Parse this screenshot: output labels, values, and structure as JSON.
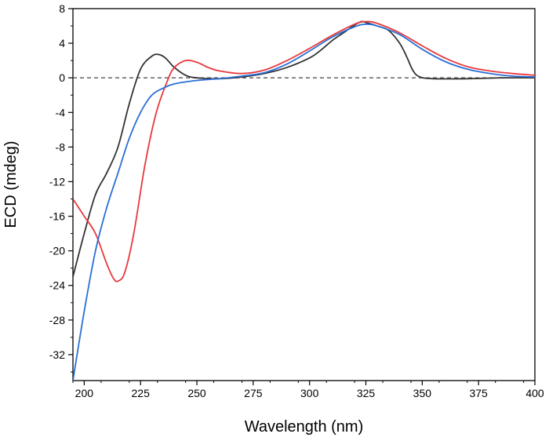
{
  "chart_data": {
    "type": "line",
    "xlabel": "Wavelength (nm)",
    "ylabel": "ECD (mdeg)",
    "xlim": [
      195,
      400
    ],
    "ylim": [
      -35,
      8
    ],
    "x_ticks": [
      200,
      225,
      250,
      275,
      300,
      325,
      350,
      375,
      400
    ],
    "y_ticks": [
      8,
      4,
      0,
      -4,
      -8,
      -12,
      -16,
      -20,
      -24,
      -28,
      -32
    ],
    "grid": false,
    "legend": "none",
    "zero_line": {
      "y": 0,
      "style": "dashed",
      "color": "#555555"
    },
    "series": [
      {
        "color": "#333333",
        "points": [
          [
            195,
            -23
          ],
          [
            200,
            -18
          ],
          [
            205,
            -13.5
          ],
          [
            210,
            -11
          ],
          [
            215,
            -8
          ],
          [
            220,
            -3
          ],
          [
            225,
            1
          ],
          [
            230,
            2.5
          ],
          [
            233,
            2.7
          ],
          [
            236,
            2.3
          ],
          [
            240,
            1.2
          ],
          [
            245,
            0.3
          ],
          [
            250,
            0
          ],
          [
            260,
            -0.1
          ],
          [
            270,
            0.1
          ],
          [
            280,
            0.5
          ],
          [
            290,
            1.2
          ],
          [
            300,
            2.3
          ],
          [
            305,
            3.2
          ],
          [
            310,
            4.3
          ],
          [
            315,
            5.2
          ],
          [
            320,
            6.1
          ],
          [
            323,
            6.5
          ],
          [
            325,
            6.4
          ],
          [
            330,
            6
          ],
          [
            335,
            5.5
          ],
          [
            340,
            4
          ],
          [
            343,
            2.5
          ],
          [
            346,
            0.8
          ],
          [
            349,
            0.1
          ],
          [
            355,
            -0.1
          ],
          [
            370,
            -0.1
          ],
          [
            385,
            0
          ],
          [
            400,
            0
          ]
        ]
      },
      {
        "color": "#e8383d",
        "points": [
          [
            195,
            -14
          ],
          [
            200,
            -16
          ],
          [
            205,
            -18
          ],
          [
            210,
            -21.5
          ],
          [
            213,
            -23.2
          ],
          [
            215,
            -23.5
          ],
          [
            218,
            -22.5
          ],
          [
            222,
            -18
          ],
          [
            227,
            -10
          ],
          [
            232,
            -4
          ],
          [
            237,
            -0.3
          ],
          [
            240,
            1.2
          ],
          [
            245,
            2
          ],
          [
            250,
            1.8
          ],
          [
            255,
            1.2
          ],
          [
            260,
            0.8
          ],
          [
            270,
            0.5
          ],
          [
            280,
            0.9
          ],
          [
            290,
            2
          ],
          [
            300,
            3.4
          ],
          [
            310,
            4.9
          ],
          [
            320,
            6.2
          ],
          [
            325,
            6.5
          ],
          [
            330,
            6.3
          ],
          [
            340,
            5.2
          ],
          [
            350,
            3.7
          ],
          [
            360,
            2.3
          ],
          [
            370,
            1.3
          ],
          [
            380,
            0.8
          ],
          [
            390,
            0.5
          ],
          [
            400,
            0.3
          ]
        ]
      },
      {
        "color": "#2a6fd6",
        "points": [
          [
            195,
            -35
          ],
          [
            200,
            -27
          ],
          [
            205,
            -20
          ],
          [
            210,
            -15
          ],
          [
            215,
            -11
          ],
          [
            220,
            -7
          ],
          [
            225,
            -4
          ],
          [
            230,
            -2
          ],
          [
            235,
            -1.2
          ],
          [
            240,
            -0.7
          ],
          [
            250,
            -0.3
          ],
          [
            260,
            -0.1
          ],
          [
            270,
            0.2
          ],
          [
            280,
            0.6
          ],
          [
            290,
            1.6
          ],
          [
            300,
            3.1
          ],
          [
            310,
            4.7
          ],
          [
            320,
            5.9
          ],
          [
            325,
            6.2
          ],
          [
            330,
            6
          ],
          [
            340,
            5
          ],
          [
            350,
            3.3
          ],
          [
            360,
            1.9
          ],
          [
            370,
            1
          ],
          [
            380,
            0.5
          ],
          [
            390,
            0.2
          ],
          [
            400,
            0.1
          ]
        ]
      }
    ]
  }
}
